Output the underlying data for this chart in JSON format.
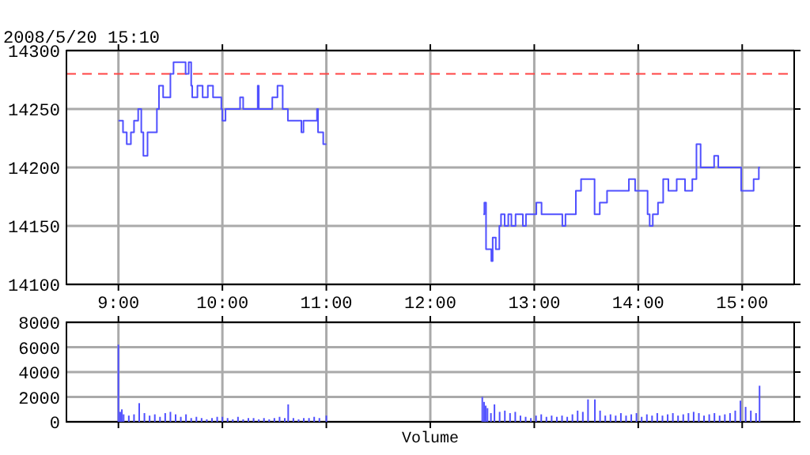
{
  "chart_data": [
    {
      "type": "step",
      "title": "2008/5/20 15:10",
      "xlim": [
        8.5,
        15.5
      ],
      "xticks": [
        {
          "value": 9,
          "label": "9:00"
        },
        {
          "value": 10,
          "label": "10:00"
        },
        {
          "value": 11,
          "label": "11:00"
        },
        {
          "value": 12,
          "label": "12:00"
        },
        {
          "value": 13,
          "label": "13:00"
        },
        {
          "value": 14,
          "label": "14:00"
        },
        {
          "value": 15,
          "label": "15:00"
        }
      ],
      "ylim": [
        14100,
        14300
      ],
      "yticks": [
        14100,
        14150,
        14200,
        14250,
        14300
      ],
      "grid": true,
      "ref_lines": [
        {
          "axis": "y",
          "value": 14280,
          "color": "#ff4444",
          "line_style": "dashed"
        }
      ],
      "series": [
        {
          "color": "#5050ff",
          "x": [
            9.0,
            9.044,
            9.08,
            9.12,
            9.15,
            9.19,
            9.22,
            9.24,
            9.28,
            9.37,
            9.39,
            9.43,
            9.5,
            9.53,
            9.646,
            9.676,
            9.7,
            9.71,
            9.76,
            9.81,
            9.86,
            9.91,
            9.99,
            10.0,
            10.03,
            10.17,
            10.2,
            10.3,
            10.34,
            10.35,
            10.48,
            10.53,
            10.58,
            10.63,
            10.76,
            10.78,
            10.91,
            10.92,
            10.97,
            11.0,
            12.0,
            12.51,
            12.52,
            12.536,
            12.587,
            12.6,
            12.63,
            12.664,
            12.68,
            12.715,
            12.75,
            12.78,
            12.82,
            12.89,
            12.92,
            13.02,
            13.07,
            13.27,
            13.3,
            13.4,
            13.45,
            13.58,
            13.63,
            13.7,
            13.91,
            13.97,
            14.09,
            14.11,
            14.14,
            14.19,
            14.24,
            14.29,
            14.37,
            14.45,
            14.52,
            14.56,
            14.6,
            14.73,
            14.77,
            14.99,
            15.11,
            15.16,
            15.17
          ],
          "values": [
            14240,
            14230,
            14220,
            14230,
            14240,
            14250,
            14230,
            14210,
            14230,
            14250,
            14270,
            14260,
            14280,
            14290,
            14280,
            14290,
            14270,
            14260,
            14270,
            14260,
            14270,
            14260,
            14250,
            14240,
            14250,
            14260,
            14250,
            14250,
            14270,
            14250,
            14260,
            14270,
            14250,
            14240,
            14230,
            14240,
            14250,
            14230,
            14220,
            14220,
            null,
            14160,
            14170,
            14130,
            14120,
            14140,
            14130,
            14150,
            14160,
            14150,
            14160,
            14150,
            14160,
            14150,
            14160,
            14170,
            14160,
            14150,
            14160,
            14180,
            14190,
            14160,
            14170,
            14180,
            14190,
            14180,
            14160,
            14150,
            14160,
            14170,
            14190,
            14180,
            14190,
            14180,
            14190,
            14220,
            14200,
            14210,
            14200,
            14180,
            14190,
            14200,
            14200
          ]
        }
      ]
    },
    {
      "type": "bar",
      "xlabel": "Volume",
      "xlim": [
        8.5,
        15.5
      ],
      "xticks": [
        9,
        10,
        11,
        12,
        13,
        14,
        15
      ],
      "ylim": [
        0,
        8000
      ],
      "yticks": [
        0,
        2000,
        4000,
        6000,
        8000
      ],
      "grid": true,
      "tick_labels": "y",
      "series": [
        {
          "color": "#5050ff",
          "x": [
            9.0,
            9.017,
            9.033,
            9.05,
            9.1,
            9.15,
            9.2,
            9.25,
            9.3,
            9.35,
            9.4,
            9.45,
            9.5,
            9.55,
            9.6,
            9.65,
            9.7,
            9.75,
            9.8,
            9.85,
            9.9,
            9.95,
            10.0,
            10.05,
            10.1,
            10.15,
            10.2,
            10.25,
            10.3,
            10.35,
            10.4,
            10.45,
            10.5,
            10.55,
            10.6,
            10.633,
            10.683,
            10.733,
            10.783,
            10.833,
            10.883,
            10.933,
            11.0,
            12.5,
            12.517,
            12.533,
            12.55,
            12.583,
            12.617,
            12.667,
            12.717,
            12.767,
            12.817,
            12.867,
            12.917,
            12.967,
            13.017,
            13.067,
            13.117,
            13.167,
            13.217,
            13.267,
            13.317,
            13.367,
            13.417,
            13.467,
            13.517,
            13.583,
            13.633,
            13.683,
            13.733,
            13.783,
            13.833,
            13.883,
            13.933,
            13.983,
            14.033,
            14.083,
            14.133,
            14.183,
            14.233,
            14.283,
            14.333,
            14.383,
            14.433,
            14.483,
            14.533,
            14.583,
            14.633,
            14.683,
            14.733,
            14.783,
            14.833,
            14.883,
            14.933,
            14.983,
            15.033,
            15.083,
            15.133,
            15.167
          ],
          "values": [
            6200,
            800,
            1000,
            600,
            500,
            600,
            1500,
            700,
            500,
            600,
            400,
            700,
            800,
            600,
            400,
            600,
            300,
            400,
            300,
            200,
            300,
            400,
            400,
            300,
            200,
            400,
            200,
            300,
            300,
            200,
            300,
            200,
            300,
            400,
            300,
            1400,
            300,
            200,
            300,
            300,
            400,
            300,
            500,
            2000,
            1600,
            1300,
            1100,
            700,
            1400,
            800,
            900,
            700,
            800,
            500,
            400,
            300,
            500,
            600,
            400,
            500,
            400,
            500,
            400,
            600,
            900,
            800,
            1800,
            1800,
            900,
            500,
            600,
            500,
            700,
            500,
            600,
            700,
            400,
            600,
            500,
            700,
            500,
            600,
            700,
            500,
            600,
            700,
            800,
            700,
            500,
            600,
            700,
            500,
            600,
            700,
            900,
            1700,
            1200,
            900,
            700,
            2900
          ]
        }
      ]
    }
  ]
}
